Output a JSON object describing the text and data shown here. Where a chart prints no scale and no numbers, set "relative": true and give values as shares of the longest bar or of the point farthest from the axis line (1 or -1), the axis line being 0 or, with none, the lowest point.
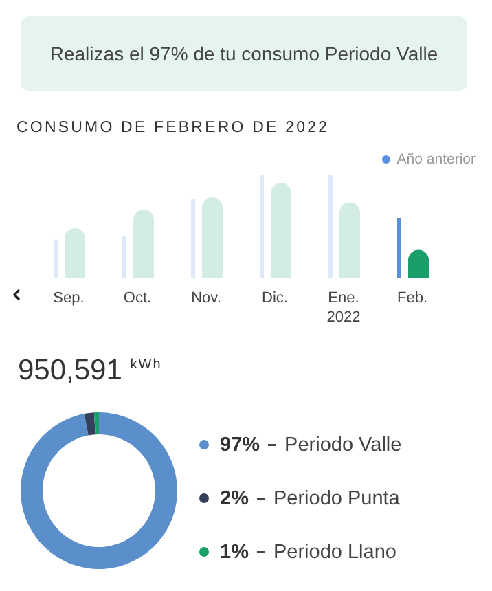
{
  "chart_data": [
    {
      "type": "bar",
      "title": "CONSUMO DE FEBRERO DE 2022",
      "annotations": [
        "Realizas el 97% de tu consumo Periodo Valle"
      ],
      "categories": [
        "Sep.",
        "Oct.",
        "Nov.",
        "Dic.",
        "Ene.\n2022",
        "Feb."
      ],
      "relative": true,
      "legend": "top right",
      "series": [
        {
          "name": "Año anterior",
          "color": "#5b8fe0",
          "colors": [
            "#dde8f8",
            "#dde8f8",
            "#dde8f8",
            "#dde8f8",
            "#dde8f8",
            "#5b8fe0"
          ],
          "values": [
            0.37,
            0.4,
            0.76,
            1,
            1,
            0.58
          ]
        },
        {
          "colors": [
            "#d3ede2",
            "#d3ede2",
            "#d3ede2",
            "#d3ede2",
            "#d3ede2",
            "#1a9e6a"
          ],
          "values": [
            0.48,
            0.66,
            0.78,
            0.92,
            0.73,
            0.27
          ]
        }
      ]
    },
    {
      "type": "donut",
      "title": "950,591 $^{kWh}$",
      "categories": [
        "Periodo Valle",
        "Periodo Punta",
        "Periodo Llano"
      ],
      "values": [
        97,
        2,
        1
      ],
      "colors": [
        "#5b8fcc",
        "#353f5c",
        "#1a9e6a"
      ],
      "value_labels": [
        "97%",
        "2%",
        "1%"
      ],
      "legend": "right"
    }
  ]
}
